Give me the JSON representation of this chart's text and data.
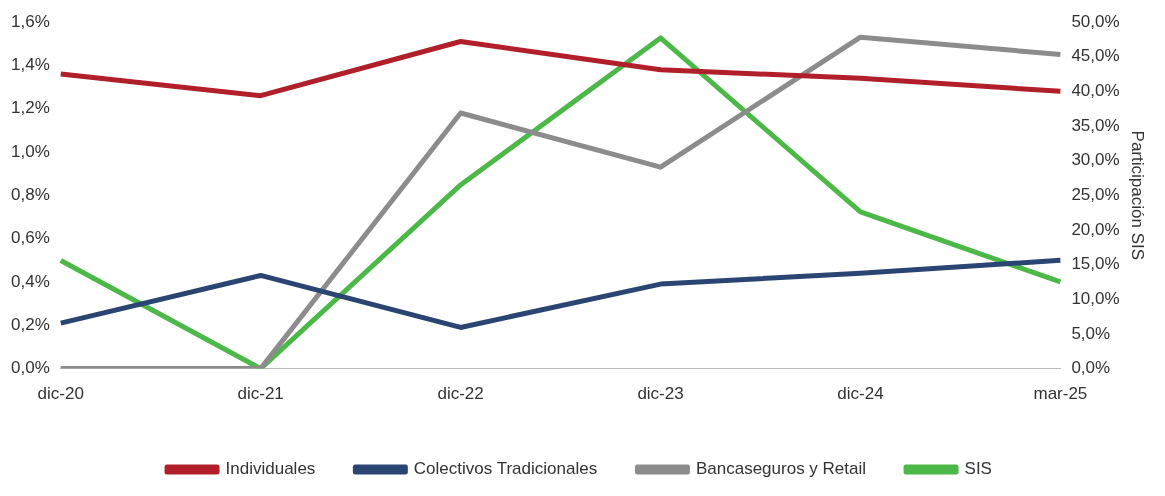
{
  "chart_data": {
    "type": "line",
    "y2label": "Participación SIS",
    "categories": [
      "dic-20",
      "dic-21",
      "dic-22",
      "dic-23",
      "dic-24",
      "mar-25"
    ],
    "series": [
      {
        "name": "Individuales",
        "color": "#b01f2a",
        "values": [
          1.36,
          1.26,
          1.51,
          1.38,
          1.34,
          1.28
        ]
      },
      {
        "name": "Colectivos Tradicionales",
        "color": "#2b4572",
        "values": [
          0.21,
          0.43,
          0.19,
          0.39,
          0.44,
          0.5
        ]
      },
      {
        "name": "Bancaseguros y Retail",
        "color": "#8c8c8c",
        "values": [
          0,
          0,
          1.18,
          0.93,
          1.53,
          1.45
        ]
      },
      {
        "name": "SIS",
        "color": "#4cb848",
        "axis": "y2",
        "values": [
          15.6,
          0,
          26.5,
          47.7,
          22.6,
          12.5
        ]
      }
    ],
    "ylim": [
      0,
      1.6
    ],
    "yticks": [
      {
        "value": 0,
        "label": "0,0%"
      },
      {
        "value": 0.2,
        "label": "0,2%"
      },
      {
        "value": 0.4,
        "label": "0,4%"
      },
      {
        "value": 0.6,
        "label": "0,6%"
      },
      {
        "value": 0.8,
        "label": "0,8%"
      },
      {
        "value": 1.0,
        "label": "1,0%"
      },
      {
        "value": 1.2,
        "label": "1,2%"
      },
      {
        "value": 1.4,
        "label": "1,4%"
      },
      {
        "value": 1.6,
        "label": "1,6%"
      }
    ],
    "y2lim": [
      0,
      50
    ],
    "y2ticks": [
      {
        "value": 0,
        "label": "0,0%"
      },
      {
        "value": 5,
        "label": "5,0%"
      },
      {
        "value": 10,
        "label": "10,0%"
      },
      {
        "value": 15,
        "label": "15,0%"
      },
      {
        "value": 20,
        "label": "20,0%"
      },
      {
        "value": 25,
        "label": "25,0%"
      },
      {
        "value": 30,
        "label": "30,0%"
      },
      {
        "value": 35,
        "label": "35,0%"
      },
      {
        "value": 40,
        "label": "40,0%"
      },
      {
        "value": 45,
        "label": "45,0%"
      },
      {
        "value": 50,
        "label": "50,0%"
      }
    ],
    "grid": false,
    "legend": "bottom",
    "marker": "none",
    "line_style": "solid"
  }
}
